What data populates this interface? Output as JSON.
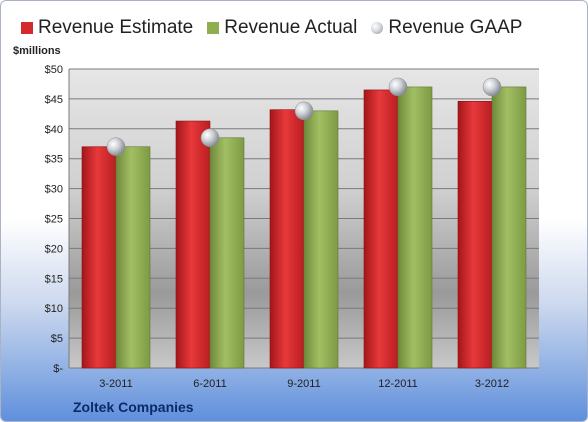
{
  "legend": [
    {
      "label": "Revenue Estimate",
      "color": "#d42a2c",
      "kind": "square"
    },
    {
      "label": "Revenue Actual",
      "color": "#8fae4f",
      "kind": "square"
    },
    {
      "label": "Revenue GAAP",
      "color": "#b4b8be",
      "kind": "ball"
    }
  ],
  "unit_label": "$millions",
  "footer_label": "Zoltek Companies",
  "chart_data": {
    "type": "bar",
    "categories": [
      "3-2011",
      "6-2011",
      "9-2011",
      "12-2011",
      "3-2012"
    ],
    "series": [
      {
        "name": "Revenue Estimate",
        "values": [
          37.0,
          41.3,
          43.2,
          46.5,
          44.6
        ],
        "color": "#d42a2c"
      },
      {
        "name": "Revenue Actual",
        "values": [
          37.0,
          38.5,
          43.0,
          47.0,
          47.0
        ],
        "color": "#8fae4f"
      }
    ],
    "markers": [
      {
        "name": "Revenue GAAP",
        "values": [
          37.0,
          38.5,
          43.0,
          47.0,
          47.0
        ],
        "color": "#b4b8be"
      }
    ],
    "yticks": [
      "$-",
      "$5",
      "$10",
      "$15",
      "$20",
      "$25",
      "$30",
      "$35",
      "$40",
      "$45",
      "$50"
    ],
    "ylim": [
      0,
      50
    ],
    "ylabel": "$millions",
    "grid": true,
    "legend_position": "top"
  }
}
